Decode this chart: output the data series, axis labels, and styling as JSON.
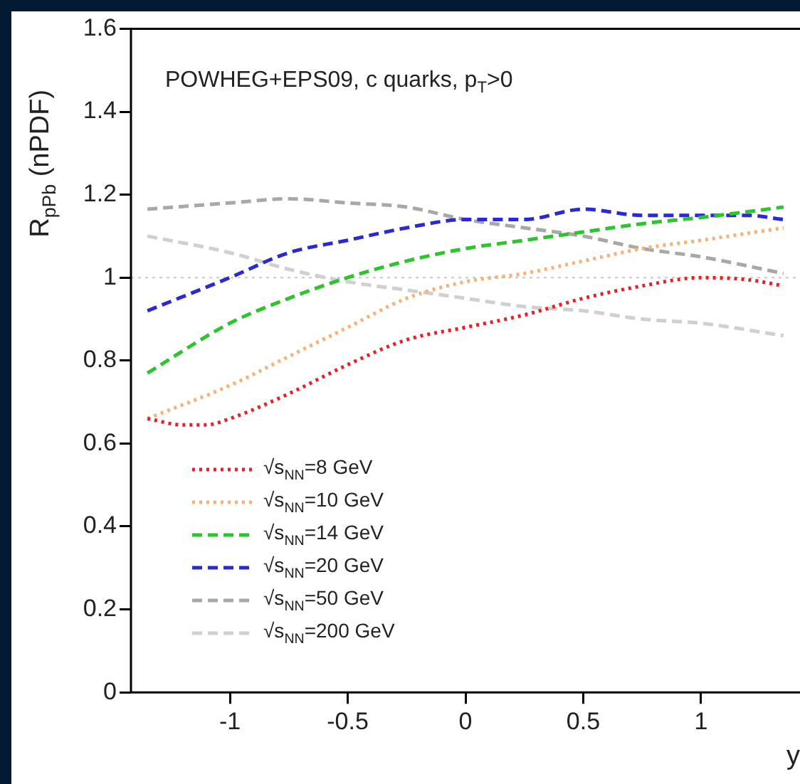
{
  "chart_data": {
    "type": "line",
    "ylabel": "R$_{pPb}$ (nPDF)",
    "xlabel": "y",
    "annotations": [
      "POWHEG+EPS09, c quarks, p$_{T}$>0"
    ],
    "xlim": [
      -1.42,
      1.42
    ],
    "xticks": [
      -1,
      -0.5,
      0,
      0.5,
      1
    ],
    "ylim": [
      0,
      1.6
    ],
    "yticks": [
      0,
      0.2,
      0.4,
      0.6,
      0.8,
      1,
      1.2,
      1.4,
      1.6
    ],
    "grid": false,
    "legend": "bottom left",
    "marker": "none",
    "ref_lines": [
      {
        "axis": "y",
        "value": 1,
        "color": "#c8c8c8",
        "line_style": "dotted"
      }
    ],
    "series": [
      {
        "name": "√s$_{NN}$=8 GeV",
        "color": "#e8202a",
        "line_style": "dotted",
        "x": [
          -1.35,
          -1.2,
          -1.1,
          -1,
          -0.75,
          -0.5,
          -0.25,
          0,
          0.25,
          0.5,
          0.75,
          1,
          1.2,
          1.35
        ],
        "values": [
          0.66,
          0.645,
          0.645,
          0.66,
          0.72,
          0.79,
          0.85,
          0.88,
          0.91,
          0.95,
          0.98,
          1.0,
          0.995,
          0.98
        ]
      },
      {
        "name": "√s$_{NN}$=10 GeV",
        "color": "#f5b27a",
        "line_style": "dotted",
        "x": [
          -1.35,
          -1,
          -0.75,
          -0.5,
          -0.25,
          0,
          0.25,
          0.5,
          0.75,
          1,
          1.35
        ],
        "values": [
          0.66,
          0.74,
          0.81,
          0.88,
          0.95,
          0.99,
          1.01,
          1.04,
          1.07,
          1.09,
          1.12
        ]
      },
      {
        "name": "√s$_{NN}$=14 GeV",
        "color": "#2ec42e",
        "line_style": "dashed",
        "x": [
          -1.35,
          -1,
          -0.75,
          -0.5,
          -0.25,
          0,
          0.25,
          0.5,
          0.75,
          1,
          1.35
        ],
        "values": [
          0.77,
          0.89,
          0.95,
          1.0,
          1.04,
          1.07,
          1.09,
          1.11,
          1.13,
          1.145,
          1.17
        ]
      },
      {
        "name": "√s$_{NN}$=20 GeV",
        "color": "#2a2ad0",
        "line_style": "dashed",
        "x": [
          -1.35,
          -1,
          -0.75,
          -0.5,
          -0.25,
          0,
          0.25,
          0.5,
          0.75,
          1,
          1.2,
          1.35
        ],
        "values": [
          0.92,
          1.0,
          1.06,
          1.09,
          1.12,
          1.14,
          1.14,
          1.165,
          1.15,
          1.15,
          1.15,
          1.14
        ]
      },
      {
        "name": "√s$_{NN}$=50 GeV",
        "color": "#a8a8a8",
        "line_style": "dashed",
        "x": [
          -1.35,
          -1,
          -0.75,
          -0.5,
          -0.25,
          0,
          0.25,
          0.5,
          0.75,
          1,
          1.35
        ],
        "values": [
          1.165,
          1.18,
          1.19,
          1.18,
          1.17,
          1.14,
          1.12,
          1.1,
          1.07,
          1.05,
          1.01
        ]
      },
      {
        "name": "√s$_{NN}$=200 GeV",
        "color": "#d0d0d0",
        "line_style": "dashed",
        "x": [
          -1.35,
          -1,
          -0.75,
          -0.5,
          -0.25,
          0,
          0.25,
          0.5,
          0.75,
          1,
          1.35
        ],
        "values": [
          1.1,
          1.06,
          1.02,
          0.99,
          0.97,
          0.95,
          0.93,
          0.92,
          0.9,
          0.89,
          0.86
        ]
      }
    ]
  }
}
